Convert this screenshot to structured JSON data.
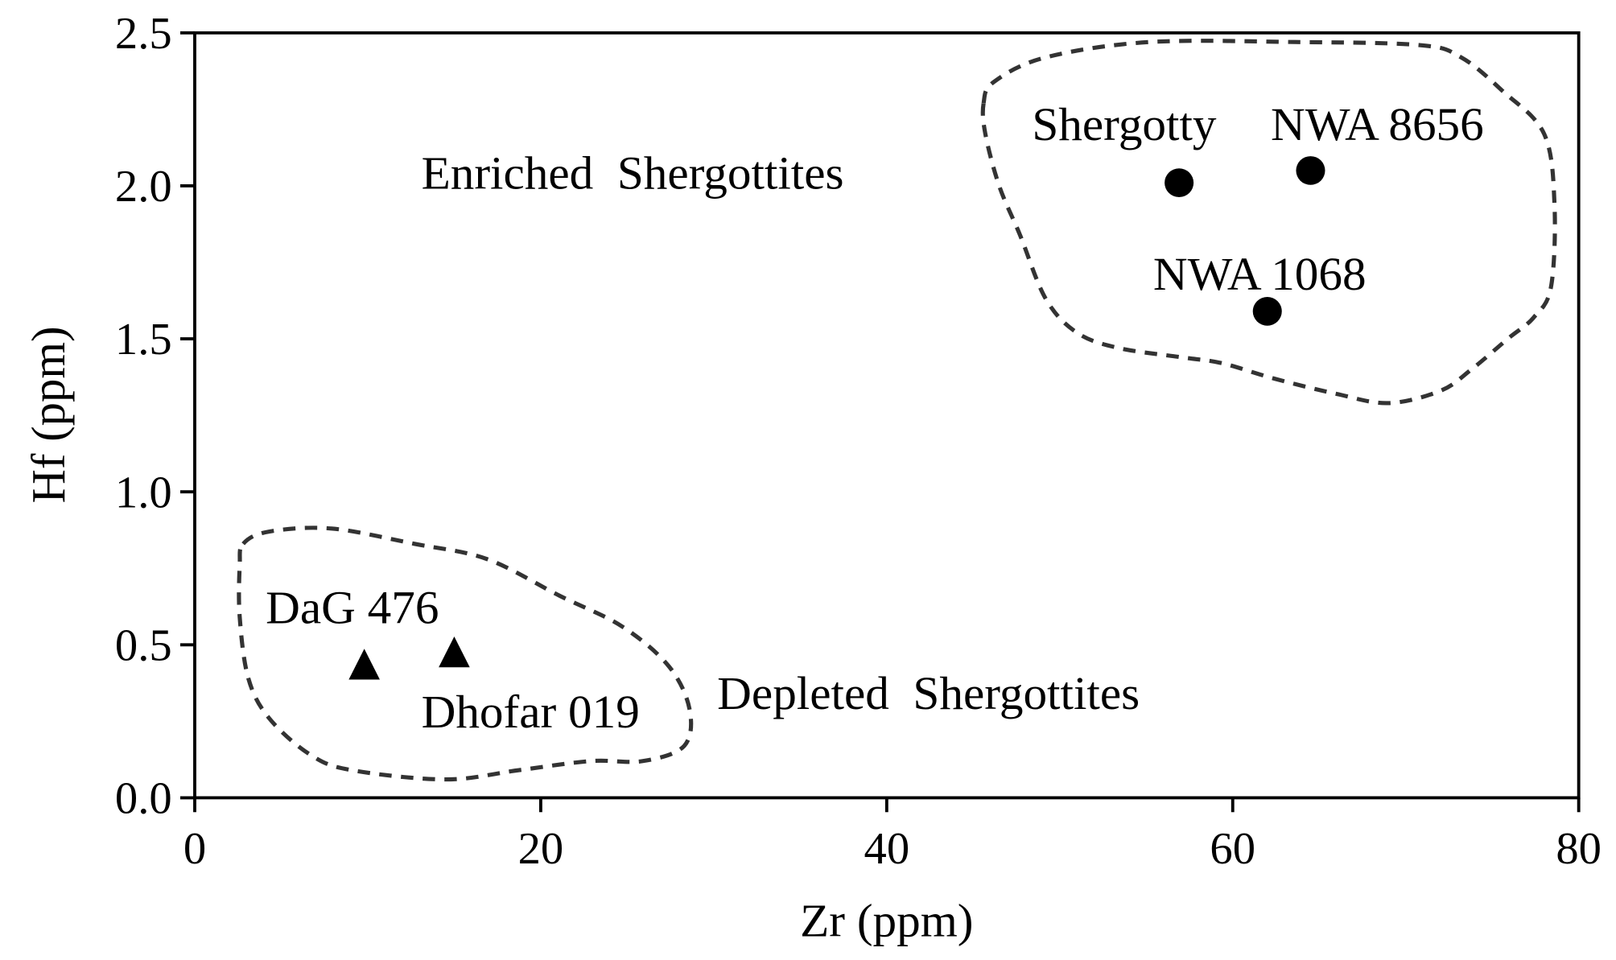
{
  "chart_data": {
    "type": "scatter",
    "title": "",
    "xlabel": "Zr (ppm)",
    "ylabel": "Hf (ppm)",
    "xlim": [
      0,
      80
    ],
    "ylim": [
      0,
      2.5
    ],
    "xticks": [
      "0",
      "20",
      "40",
      "60",
      "80"
    ],
    "yticks": [
      "0.0",
      "0.5",
      "1.0",
      "1.5",
      "2.0",
      "2.5"
    ],
    "grid": false,
    "colors": {
      "marker": "#000000",
      "outline": "#333333",
      "axis": "#000000"
    },
    "points": [
      {
        "label": "Shergotty",
        "x": 56.9,
        "y": 2.01,
        "marker": "circle",
        "lx": 48.4,
        "ly": 2.15
      },
      {
        "label": "NWA 8656",
        "x": 64.5,
        "y": 2.05,
        "marker": "circle",
        "lx": 62.2,
        "ly": 2.15
      },
      {
        "label": "NWA 1068",
        "x": 62.0,
        "y": 1.59,
        "marker": "circle",
        "lx": 55.4,
        "ly": 1.66
      },
      {
        "label": "DaG 476",
        "x": 9.8,
        "y": 0.43,
        "marker": "triangle",
        "lx": 4.1,
        "ly": 0.57
      },
      {
        "label": "Dhofar 019",
        "x": 15.0,
        "y": 0.47,
        "marker": "triangle",
        "lx": 13.1,
        "ly": 0.23
      }
    ],
    "regions": [
      {
        "label": "Enriched  Shergottites",
        "lx": 13.1,
        "ly": 1.99,
        "outline": [
          [
            45.6,
            2.27
          ],
          [
            46.2,
            2.34
          ],
          [
            49.2,
            2.42
          ],
          [
            55.2,
            2.47
          ],
          [
            63.6,
            2.47
          ],
          [
            70.8,
            2.46
          ],
          [
            73.2,
            2.42
          ],
          [
            75.6,
            2.31
          ],
          [
            78.0,
            2.17
          ],
          [
            78.6,
            1.94
          ],
          [
            78.4,
            1.67
          ],
          [
            77.4,
            1.57
          ],
          [
            75.9,
            1.5
          ],
          [
            73.8,
            1.4
          ],
          [
            72.0,
            1.33
          ],
          [
            69.0,
            1.29
          ],
          [
            66.0,
            1.32
          ],
          [
            62.4,
            1.37
          ],
          [
            59.4,
            1.42
          ],
          [
            57.0,
            1.44
          ],
          [
            53.4,
            1.47
          ],
          [
            51.0,
            1.52
          ],
          [
            49.2,
            1.63
          ],
          [
            47.7,
            1.84
          ],
          [
            46.5,
            2.0
          ],
          [
            45.7,
            2.17
          ]
        ]
      },
      {
        "label": "Depleted  Shergottites",
        "lx": 30.2,
        "ly": 0.29,
        "outline": [
          [
            2.8,
            0.83
          ],
          [
            4.3,
            0.87
          ],
          [
            7.9,
            0.88
          ],
          [
            12.7,
            0.83
          ],
          [
            16.9,
            0.78
          ],
          [
            21.1,
            0.66
          ],
          [
            24.7,
            0.56
          ],
          [
            27.4,
            0.43
          ],
          [
            28.6,
            0.29
          ],
          [
            28.3,
            0.17
          ],
          [
            25.9,
            0.12
          ],
          [
            22.9,
            0.12
          ],
          [
            18.7,
            0.09
          ],
          [
            14.5,
            0.06
          ],
          [
            9.1,
            0.09
          ],
          [
            6.7,
            0.14
          ],
          [
            4.3,
            0.26
          ],
          [
            3.1,
            0.39
          ],
          [
            2.6,
            0.59
          ],
          [
            2.6,
            0.76
          ]
        ]
      }
    ]
  }
}
